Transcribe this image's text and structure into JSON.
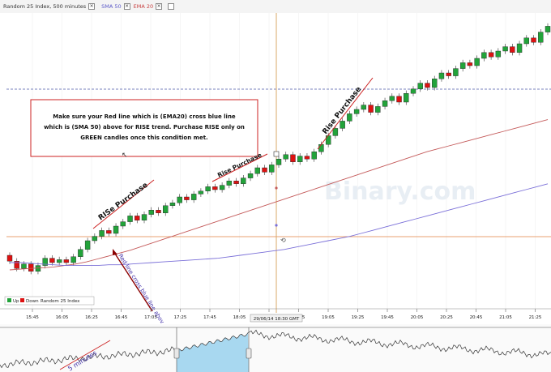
{
  "window": {
    "title": "Random 25 Index, 500 minutes",
    "sma_label": "SMA 50",
    "ema_label": "EMA 20"
  },
  "colors": {
    "up_candle": "#22a33a",
    "down_candle": "#dd1111",
    "ema20": "#c45a5a",
    "sma50": "#7a6fd8",
    "crosshair": "#e0a060",
    "arrow": "#8b0000",
    "nav_fill": "#a8d8f0"
  },
  "annotation_box": {
    "line1": "Make sure your Red line which is (EMA20) cross blue line",
    "line2": "which is (SMA 50) above for RISE trend.  Purchase RISE only on",
    "line3": "GREEN candles once this condition met."
  },
  "labels": {
    "rise1": "RISe Purchase",
    "rise2": "Rise Purchase",
    "rise3": "Rise Purchase",
    "cross_note": "Red line cross blue line abov",
    "nav_note": "5 minutes"
  },
  "legend": {
    "up": "Up",
    "down": "Down",
    "name": "Random 25 Index"
  },
  "watermark": "Binary.com",
  "crosshair_time": "29/06/14 18:30 GMT",
  "x_ticks": [
    "15:45",
    "16:05",
    "16:25",
    "16:45",
    "17:05",
    "17:25",
    "17:45",
    "18:05",
    "18:25",
    "18:45",
    "19:05",
    "19:25",
    "19:45",
    "20:05",
    "20:25",
    "20:45",
    "21:05",
    "21:25"
  ],
  "chart_data": {
    "type": "candlestick",
    "series": [
      {
        "name": "EMA 20",
        "values": [
          20,
          21,
          22,
          23,
          24,
          26,
          28,
          31,
          35,
          39,
          43,
          47,
          52,
          57,
          62,
          67,
          72,
          77,
          82,
          87,
          92,
          97,
          102,
          107,
          112,
          117,
          122,
          127,
          132,
          137,
          142,
          147,
          152,
          157,
          162,
          167,
          172,
          177,
          182,
          186,
          190,
          194,
          198,
          202,
          206,
          210,
          214,
          218,
          222,
          226
        ]
      },
      {
        "name": "SMA 50",
        "values": [
          30,
          30,
          29,
          28,
          27,
          26,
          26,
          26,
          26,
          27,
          27,
          28,
          29,
          30,
          31,
          32,
          33,
          34,
          35,
          36,
          38,
          40,
          42,
          44,
          46,
          48,
          51,
          54,
          57,
          60,
          63,
          66,
          70,
          74,
          78,
          82,
          86,
          90,
          94,
          98,
          102,
          106,
          110,
          114,
          118,
          122,
          126,
          130,
          134,
          138
        ]
      }
    ],
    "candles": [
      [
        40,
        32
      ],
      [
        32,
        22
      ],
      [
        22,
        28
      ],
      [
        28,
        18
      ],
      [
        18,
        26
      ],
      [
        26,
        36
      ],
      [
        36,
        30
      ],
      [
        30,
        34
      ],
      [
        34,
        30
      ],
      [
        30,
        38
      ],
      [
        38,
        48
      ],
      [
        48,
        60
      ],
      [
        60,
        66
      ],
      [
        66,
        74
      ],
      [
        74,
        70
      ],
      [
        70,
        80
      ],
      [
        80,
        86
      ],
      [
        86,
        94
      ],
      [
        94,
        88
      ],
      [
        88,
        96
      ],
      [
        96,
        102
      ],
      [
        102,
        98
      ],
      [
        98,
        108
      ],
      [
        108,
        112
      ],
      [
        112,
        120
      ],
      [
        120,
        116
      ],
      [
        116,
        124
      ],
      [
        124,
        128
      ],
      [
        128,
        134
      ],
      [
        134,
        130
      ],
      [
        130,
        136
      ],
      [
        136,
        142
      ],
      [
        142,
        138
      ],
      [
        138,
        146
      ],
      [
        146,
        152
      ],
      [
        152,
        160
      ],
      [
        160,
        154
      ],
      [
        154,
        164
      ],
      [
        164,
        172
      ],
      [
        172,
        178
      ],
      [
        178,
        168
      ],
      [
        168,
        176
      ],
      [
        176,
        172
      ],
      [
        172,
        182
      ],
      [
        182,
        192
      ],
      [
        192,
        204
      ],
      [
        204,
        214
      ],
      [
        214,
        224
      ],
      [
        224,
        234
      ],
      [
        234,
        240
      ],
      [
        240,
        246
      ],
      [
        246,
        236
      ],
      [
        236,
        244
      ],
      [
        244,
        252
      ],
      [
        252,
        258
      ],
      [
        258,
        250
      ],
      [
        250,
        262
      ],
      [
        262,
        268
      ],
      [
        268,
        276
      ],
      [
        276,
        270
      ],
      [
        270,
        282
      ],
      [
        282,
        290
      ],
      [
        290,
        286
      ],
      [
        286,
        296
      ],
      [
        296,
        304
      ],
      [
        304,
        300
      ],
      [
        300,
        310
      ],
      [
        310,
        318
      ],
      [
        318,
        312
      ],
      [
        312,
        320
      ],
      [
        320,
        326
      ],
      [
        326,
        318
      ],
      [
        318,
        330
      ],
      [
        330,
        338
      ],
      [
        338,
        332
      ],
      [
        332,
        346
      ],
      [
        346,
        354
      ]
    ]
  }
}
